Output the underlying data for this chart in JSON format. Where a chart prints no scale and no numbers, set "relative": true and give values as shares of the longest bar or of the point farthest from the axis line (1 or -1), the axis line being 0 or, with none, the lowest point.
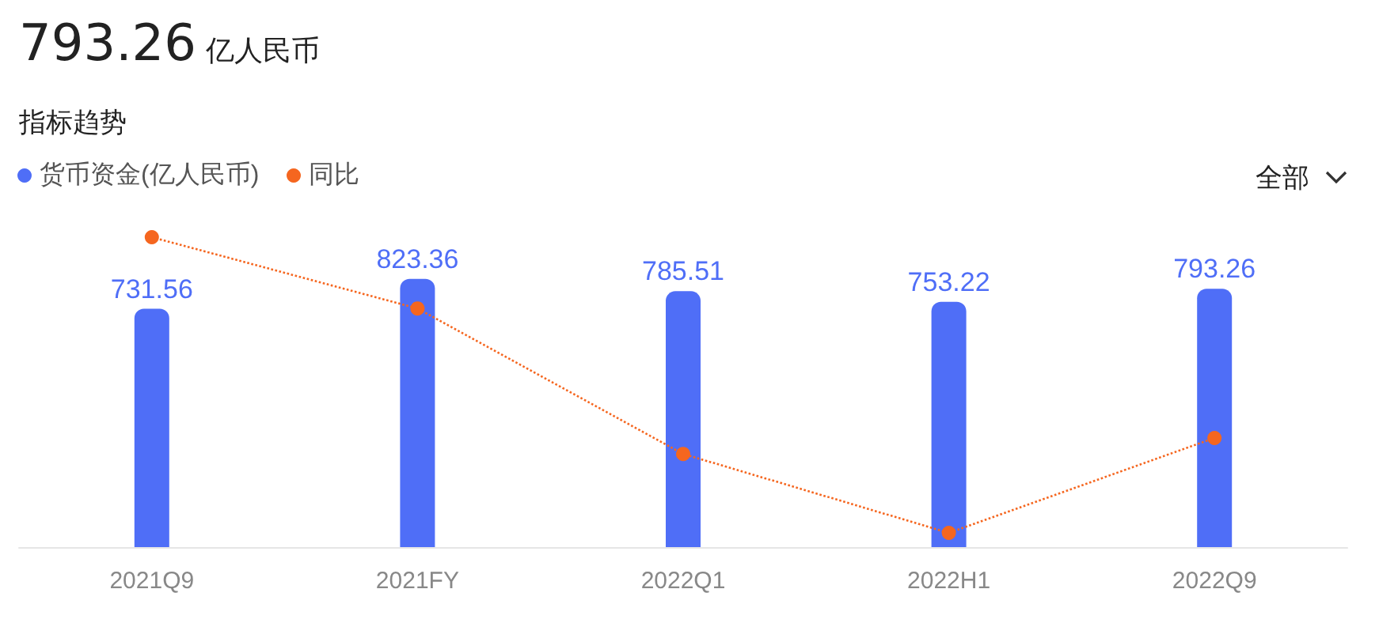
{
  "chart_data": [
    {
      "type": "bar",
      "title": "793.26 亿人民币",
      "subtitle": "指标趋势",
      "categories": [
        "2021Q9",
        "2021FY",
        "2022Q1",
        "2022H1",
        "2022Q9"
      ],
      "series": [
        {
          "name": "货币资金(亿人民币)",
          "color": "#4f6ef7",
          "values": [
            731.56,
            823.36,
            785.51,
            753.22,
            793.26
          ]
        }
      ],
      "data_labels": true,
      "legend": "top left",
      "annotations": [
        "全部"
      ]
    },
    {
      "type": "line",
      "relative": true,
      "categories": [
        null,
        null,
        null,
        null,
        null
      ],
      "series": [
        {
          "name": "同比",
          "color": "#f5661f",
          "values": [
            1,
            0.759,
            0.267,
            0,
            0.321
          ]
        }
      ],
      "marker": "circle",
      "line_style": "dotted",
      "legend": "top left",
      "tick_labels": false
    }
  ]
}
